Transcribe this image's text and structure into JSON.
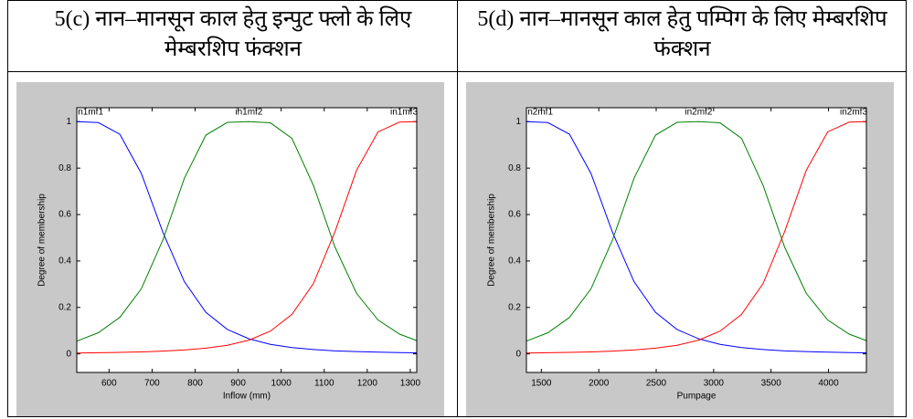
{
  "chart_data": [
    {
      "type": "line",
      "title": "5(c) नान–मानसून काल हेतु इन्पुट फ्लो के लिए मेम्बरशिप फंक्शन",
      "xlabel": "Inflow (mm)",
      "ylabel": "Degree of membership",
      "x": [
        525,
        575,
        625,
        675,
        725,
        775,
        825,
        875,
        925,
        975,
        1025,
        1075,
        1125,
        1175,
        1225,
        1275,
        1315
      ],
      "series": [
        {
          "name": "in1mf1",
          "color": "#0000ff",
          "values": [
            1,
            0.996,
            0.946,
            0.777,
            0.524,
            0.311,
            0.179,
            0.105,
            0.065,
            0.041,
            0.027,
            0.019,
            0.013,
            0.0098,
            0.0073,
            0.0055,
            0.0045
          ]
        },
        {
          "name": "in1mf2",
          "color": "#008000",
          "values": [
            0.055,
            0.091,
            0.157,
            0.28,
            0.49,
            0.756,
            0.942,
            0.997,
            1,
            0.995,
            0.928,
            0.725,
            0.46,
            0.261,
            0.146,
            0.085,
            0.057
          ]
        },
        {
          "name": "in1mf3",
          "color": "#ff0000",
          "values": [
            0.0037,
            0.0048,
            0.0063,
            0.0085,
            0.0118,
            0.0167,
            0.0245,
            0.037,
            0.059,
            0.098,
            0.17,
            0.303,
            0.526,
            0.79,
            0.956,
            0.998,
            1
          ]
        }
      ],
      "xlim": [
        525,
        1315
      ],
      "ylim": [
        -0.08,
        1.06
      ],
      "xticks": [
        600,
        700,
        800,
        900,
        1000,
        1100,
        1200,
        1300
      ],
      "yticks": [
        0,
        0.2,
        0.4,
        0.6,
        0.8,
        1
      ]
    },
    {
      "type": "line",
      "title": "5(d) नान–मानसून काल हेतु पम्पिग के लिए मेम्बरशिप फंक्शन",
      "xlabel": "Pumpage",
      "ylabel": "Degree of membership",
      "x": [
        1370,
        1557,
        1745,
        1932,
        2119,
        2307,
        2494,
        2681,
        2869,
        3056,
        3243,
        3431,
        3618,
        3806,
        3993,
        4180,
        4330
      ],
      "series": [
        {
          "name": "in2mf1",
          "color": "#0000ff",
          "values": [
            1,
            0.996,
            0.946,
            0.777,
            0.524,
            0.311,
            0.179,
            0.105,
            0.065,
            0.041,
            0.027,
            0.019,
            0.013,
            0.0098,
            0.0073,
            0.0055,
            0.0045
          ]
        },
        {
          "name": "in2mf2",
          "color": "#008000",
          "values": [
            0.055,
            0.091,
            0.157,
            0.28,
            0.49,
            0.756,
            0.942,
            0.997,
            1,
            0.995,
            0.928,
            0.725,
            0.46,
            0.261,
            0.146,
            0.085,
            0.057
          ]
        },
        {
          "name": "in2mf3",
          "color": "#ff0000",
          "values": [
            0.0037,
            0.0048,
            0.0063,
            0.0085,
            0.0118,
            0.0167,
            0.0245,
            0.037,
            0.059,
            0.098,
            0.17,
            0.303,
            0.526,
            0.79,
            0.956,
            0.998,
            1
          ]
        }
      ],
      "xlim": [
        1370,
        4330
      ],
      "ylim": [
        -0.08,
        1.06
      ],
      "xticks": [
        1500,
        2000,
        2500,
        3000,
        3500,
        4000
      ],
      "yticks": [
        0,
        0.2,
        0.4,
        0.6,
        0.8,
        1
      ]
    }
  ]
}
